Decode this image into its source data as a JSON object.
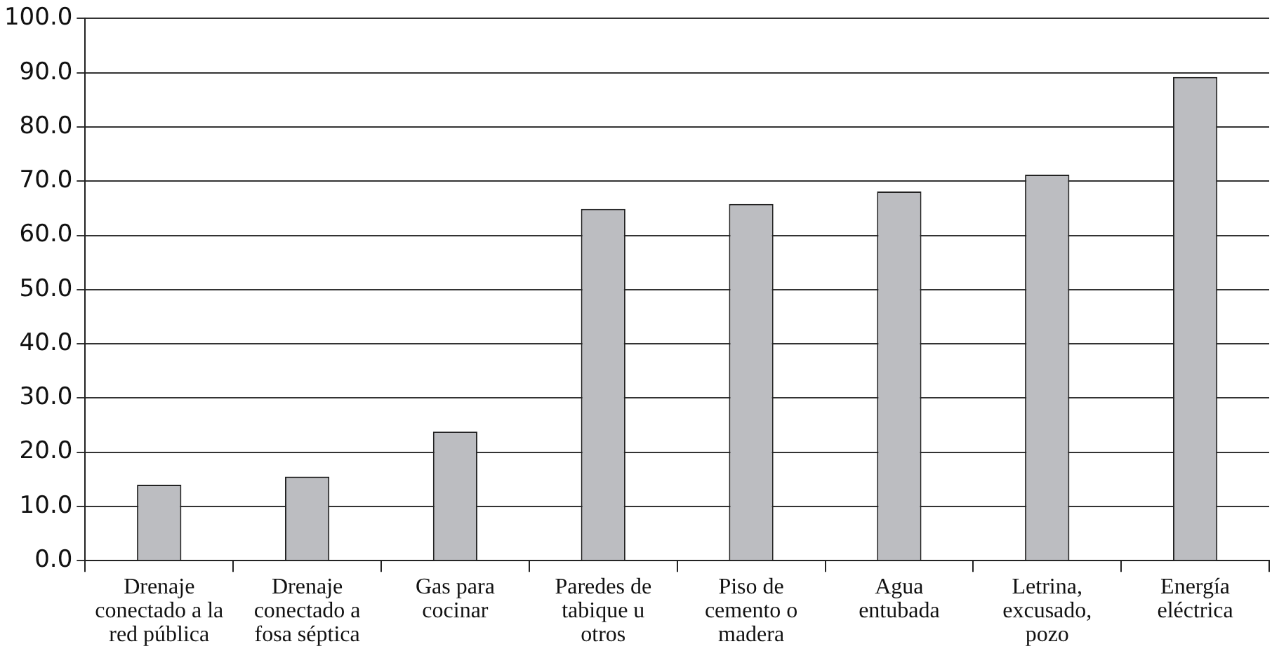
{
  "chart_data": {
    "type": "bar",
    "categories": [
      "Drenaje conectado a la red pública",
      "Drenaje conectado a fosa séptica",
      "Gas para cocinar",
      "Paredes de tabique u otros",
      "Piso de cemento o madera",
      "Agua entubada",
      "Letrina, excusado, pozo",
      "Energía eléctrica"
    ],
    "values": [
      14.0,
      15.5,
      23.8,
      64.9,
      65.8,
      68.1,
      71.2,
      89.2
    ],
    "color": "#bcbdc1",
    "ylim": [
      0,
      100
    ],
    "yticks": [
      {
        "value": 0,
        "label": "0.0"
      },
      {
        "value": 10,
        "label": "10.0"
      },
      {
        "value": 20,
        "label": "20.0"
      },
      {
        "value": 30,
        "label": "30.0"
      },
      {
        "value": 40,
        "label": "40.0"
      },
      {
        "value": 50,
        "label": "50.0"
      },
      {
        "value": 60,
        "label": "60.0"
      },
      {
        "value": 70,
        "label": "70.0"
      },
      {
        "value": 80,
        "label": "80.0"
      },
      {
        "value": 90,
        "label": "90.0"
      },
      {
        "value": 100,
        "label": "100.0"
      }
    ],
    "grid": "y",
    "legend": false
  }
}
